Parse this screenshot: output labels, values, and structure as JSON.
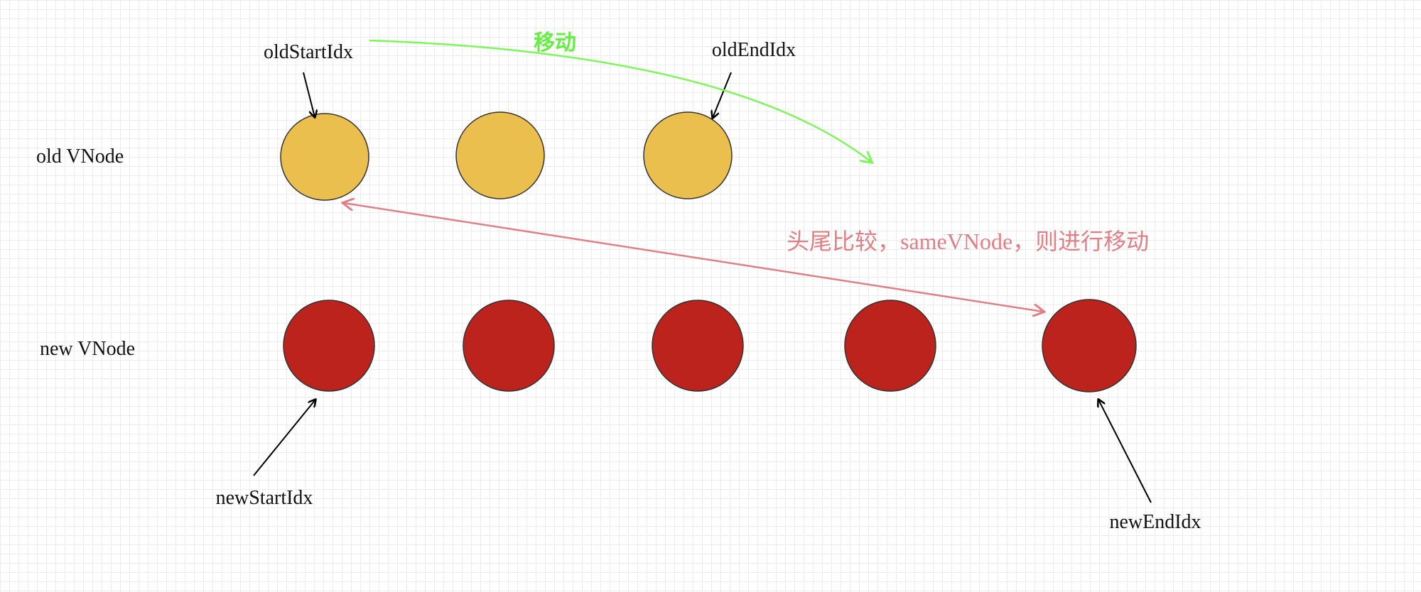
{
  "rows": {
    "old": "old VNode",
    "new": "new VNode"
  },
  "pointers": {
    "old_start": "oldStartIdx",
    "old_end": "oldEndIdx",
    "new_start": "newStartIdx",
    "new_end": "newEndIdx"
  },
  "annotations": {
    "move": "移动",
    "compare": "头尾比较，sameVNode，则进行移动"
  },
  "nodes": {
    "old_count": 3,
    "new_count": 5
  },
  "colors": {
    "old_node": "#ebbf4e",
    "new_node": "#bc231c",
    "move_arrow": "#7ef55a",
    "compare_arrow": "#e07f85"
  }
}
